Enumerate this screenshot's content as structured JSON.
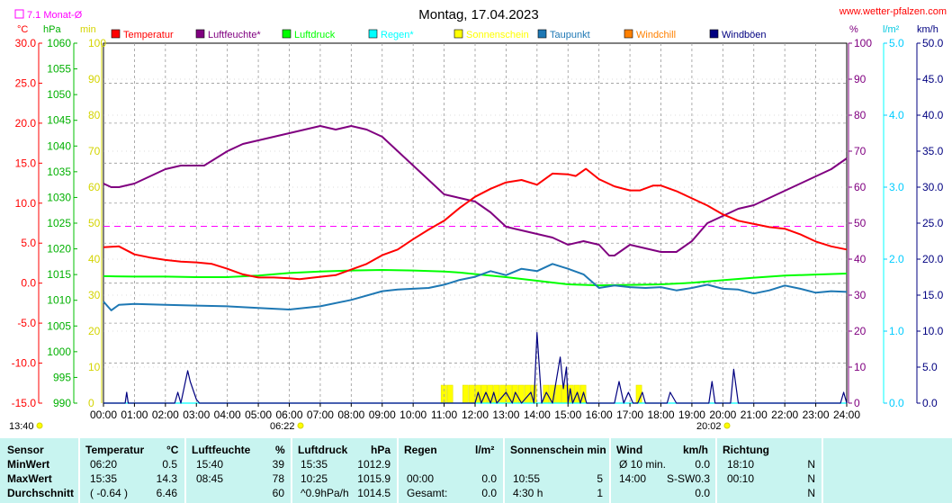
{
  "header": {
    "title": "Montag, 17.04.2023",
    "website": "www.wetter-pfalzen.com",
    "month_avg_label": "7.1 Monat-Ø"
  },
  "units": {
    "celsius": "°C",
    "hpa": "hPa",
    "min": "min",
    "percent": "%",
    "lm2": "l/m²",
    "kmh": "km/h"
  },
  "legend": [
    {
      "label": "Temperatur",
      "color": "#ff0000"
    },
    {
      "label": "Luftfeuchte*",
      "color": "#800080"
    },
    {
      "label": "Luftdruck",
      "color": "#00ff00"
    },
    {
      "label": "Regen*",
      "color": "#00ffff"
    },
    {
      "label": "Sonnenschein",
      "color": "#ffff00"
    },
    {
      "label": "Taupunkt",
      "color": "#1e78b4"
    },
    {
      "label": "Windchill",
      "color": "#ff8000"
    },
    {
      "label": "Windböen",
      "color": "#000080"
    }
  ],
  "axis_ticks": {
    "temperature": [
      "30.0",
      "25.0",
      "20.0",
      "15.0",
      "10.0",
      "5.0",
      "0.0",
      "-5.0",
      "-10.0",
      "-15.0"
    ],
    "pressure": [
      "1060",
      "1055",
      "1050",
      "1045",
      "1040",
      "1035",
      "1030",
      "1025",
      "1020",
      "1015",
      "1010",
      "1005",
      "1000",
      "995",
      "990"
    ],
    "sunshine": [
      "100",
      "90",
      "80",
      "70",
      "60",
      "50",
      "40",
      "30",
      "20",
      "10",
      "0"
    ],
    "humidity": [
      "100",
      "90",
      "80",
      "70",
      "60",
      "50",
      "40",
      "30",
      "20",
      "10",
      "0"
    ],
    "rain": [
      "5.0",
      "4.0",
      "3.0",
      "2.0",
      "1.0",
      "0.0"
    ],
    "wind": [
      "50.0",
      "45.0",
      "40.0",
      "35.0",
      "30.0",
      "25.0",
      "20.0",
      "15.0",
      "10.0",
      "5.0",
      "0.0"
    ],
    "time": [
      "00:00",
      "01:00",
      "02:00",
      "03:00",
      "04:00",
      "05:00",
      "06:00",
      "07:00",
      "08:00",
      "09:00",
      "10:00",
      "11:00",
      "12:00",
      "13:00",
      "14:00",
      "15:00",
      "16:00",
      "17:00",
      "18:00",
      "19:00",
      "20:00",
      "21:00",
      "22:00",
      "23:00",
      "24:00"
    ]
  },
  "sun_times": {
    "sunrise": "06:22",
    "sunset": "20:02",
    "previous_label": "13:40"
  },
  "chart_data": {
    "type": "line",
    "title": "Montag, 17.04.2023",
    "x_unit": "hours",
    "xlim": [
      0,
      24
    ],
    "axes": {
      "temperature": {
        "unit": "°C",
        "ylim": [
          -15,
          30
        ]
      },
      "pressure": {
        "unit": "hPa",
        "ylim": [
          990,
          1060
        ]
      },
      "sunshine": {
        "unit": "min",
        "ylim": [
          0,
          100
        ]
      },
      "humidity": {
        "unit": "%",
        "ylim": [
          0,
          100
        ]
      },
      "rain": {
        "unit": "l/m²",
        "ylim": [
          0,
          5
        ]
      },
      "wind": {
        "unit": "km/h",
        "ylim": [
          0,
          50
        ]
      }
    },
    "grid": true,
    "reference_line": {
      "label": "7.1 Monat-Ø",
      "value": 7.1,
      "axis": "temperature",
      "style": "dashed",
      "color": "#ff00ff"
    },
    "series": [
      {
        "name": "Temperatur",
        "axis": "temperature",
        "color": "#ff0000",
        "x": [
          0,
          0.5,
          1,
          1.5,
          2,
          2.5,
          3,
          3.5,
          4,
          4.5,
          5,
          5.5,
          6,
          6.33,
          7,
          7.5,
          8,
          8.5,
          9,
          9.5,
          10,
          10.5,
          11,
          11.5,
          12,
          12.5,
          13,
          13.5,
          14,
          14.5,
          15,
          15.25,
          15.58,
          16,
          16.5,
          17,
          17.33,
          17.75,
          18,
          18.5,
          19,
          19.5,
          20,
          20.5,
          21,
          21.5,
          22,
          22.5,
          23,
          23.5,
          24
        ],
        "y": [
          4.5,
          4.6,
          3.6,
          3.2,
          2.9,
          2.7,
          2.6,
          2.4,
          1.8,
          1.1,
          0.7,
          0.7,
          0.6,
          0.5,
          0.8,
          1.0,
          1.7,
          2.4,
          3.5,
          4.2,
          5.5,
          6.7,
          7.8,
          9.4,
          10.8,
          11.8,
          12.6,
          12.9,
          12.3,
          13.7,
          13.6,
          13.4,
          14.3,
          13.0,
          12.1,
          11.6,
          11.6,
          12.2,
          12.2,
          11.5,
          10.6,
          9.7,
          8.6,
          7.8,
          7.4,
          7.0,
          6.8,
          6.1,
          5.2,
          4.6,
          4.2
        ]
      },
      {
        "name": "Luftfeuchte*",
        "axis": "humidity",
        "color": "#800080",
        "x": [
          0,
          0.25,
          0.5,
          1,
          1.5,
          2,
          2.5,
          3,
          3.25,
          4,
          4.5,
          5,
          5.5,
          6,
          6.5,
          7,
          7.5,
          8,
          8.5,
          9,
          9.5,
          10,
          10.5,
          11,
          11.5,
          12,
          12.5,
          13,
          13.5,
          14,
          14.5,
          15,
          15.5,
          16,
          16.33,
          16.5,
          17,
          17.5,
          18,
          18.5,
          19,
          19.5,
          20,
          20.5,
          21,
          21.5,
          22,
          22.5,
          23,
          23.5,
          24
        ],
        "y": [
          61,
          60,
          60,
          61,
          63,
          65,
          66,
          66,
          66,
          70,
          72,
          73,
          74,
          75,
          76,
          77,
          76,
          77,
          76,
          74,
          70,
          66,
          62,
          58,
          57,
          56,
          53,
          49,
          48,
          47,
          46,
          44,
          45,
          44,
          41,
          41,
          44,
          43,
          42,
          42,
          45,
          50,
          52,
          54,
          55,
          57,
          59,
          61,
          63,
          65,
          68
        ]
      },
      {
        "name": "Luftdruck",
        "axis": "pressure",
        "color": "#00ff00",
        "x": [
          0,
          1,
          2,
          3,
          4,
          5,
          6,
          7,
          8,
          9,
          10,
          11,
          11.5,
          12,
          13,
          14,
          15,
          16,
          17,
          18,
          19,
          20,
          21,
          22,
          23,
          24
        ],
        "y": [
          1014.7,
          1014.6,
          1014.6,
          1014.5,
          1014.5,
          1014.8,
          1015.3,
          1015.6,
          1015.8,
          1015.9,
          1015.8,
          1015.6,
          1015.4,
          1015.1,
          1014.5,
          1013.8,
          1013.1,
          1012.9,
          1013.0,
          1013.1,
          1013.4,
          1013.9,
          1014.4,
          1014.8,
          1015.0,
          1015.2
        ]
      },
      {
        "name": "Taupunkt",
        "axis": "temperature",
        "color": "#1e78b4",
        "x": [
          0,
          0.25,
          0.5,
          1,
          2,
          3,
          4,
          5,
          6,
          7,
          8,
          9,
          9.5,
          10,
          10.5,
          11,
          11.5,
          12,
          12.5,
          13,
          13.5,
          14,
          14.5,
          15,
          15.5,
          16,
          16.5,
          17,
          17.5,
          18,
          18.5,
          19,
          19.5,
          20,
          20.5,
          21,
          21.5,
          22,
          22.5,
          23,
          23.5,
          24
        ],
        "y": [
          -2.3,
          -3.4,
          -2.7,
          -2.6,
          -2.7,
          -2.8,
          -2.9,
          -3.1,
          -3.3,
          -2.9,
          -2.1,
          -1.0,
          -0.8,
          -0.7,
          -0.6,
          -0.2,
          0.4,
          0.8,
          1.5,
          1.0,
          1.8,
          1.5,
          2.4,
          1.8,
          1.1,
          -0.6,
          -0.3,
          -0.5,
          -0.6,
          -0.5,
          -0.9,
          -0.6,
          -0.2,
          -0.7,
          -0.8,
          -1.3,
          -0.9,
          -0.3,
          -0.7,
          -1.2,
          -1.0,
          -1.1
        ]
      },
      {
        "name": "Windböen",
        "axis": "wind",
        "color": "#000080",
        "x": [
          0,
          0.7,
          0.75,
          0.8,
          1,
          2.3,
          2.4,
          2.5,
          2.72,
          2.8,
          3.0,
          3.1,
          12,
          12.1,
          12.2,
          12.35,
          12.5,
          12.6,
          12.7,
          13.0,
          13.2,
          13.3,
          13.5,
          13.8,
          13.9,
          14.0,
          14.15,
          14.3,
          14.5,
          14.75,
          14.85,
          14.95,
          15.0,
          15.07,
          15.15,
          15.3,
          15.4,
          15.5,
          15.6,
          16.0,
          16.5,
          16.65,
          16.8,
          16.95,
          17.1,
          17.15,
          17.25,
          17.4,
          17.5,
          18,
          18.2,
          18.3,
          18.5,
          19,
          19.55,
          19.65,
          19.75,
          20,
          20.25,
          20.35,
          20.5,
          20.6,
          21,
          23.8,
          23.9,
          24
        ],
        "y": [
          0,
          0,
          1.5,
          0,
          0,
          0,
          1.5,
          0,
          4.5,
          3,
          0.5,
          0,
          0,
          1.5,
          0,
          1.5,
          0,
          1.5,
          0,
          1.5,
          0,
          1.5,
          0,
          1.5,
          0,
          9.8,
          0,
          1.5,
          0,
          6.4,
          2,
          5,
          0,
          2,
          0,
          1.5,
          0,
          1.5,
          0,
          0,
          0,
          3,
          0,
          1.5,
          0,
          0,
          0,
          1.5,
          0,
          0,
          0,
          1.5,
          0,
          0,
          0,
          3,
          0,
          0,
          0,
          4.7,
          0,
          0,
          0,
          0,
          1.5,
          0
        ]
      },
      {
        "name": "Sonnenschein",
        "axis": "sunshine",
        "color": "#ffff00",
        "x": [
          10.9,
          11.1,
          11.3,
          11.5,
          11.6,
          11.8,
          12.0,
          12.2,
          12.4,
          12.6,
          12.8,
          13.0,
          13.2,
          13.4,
          13.6,
          13.8,
          14.0,
          14.2,
          14.4,
          14.6,
          14.8,
          15.0,
          15.2,
          15.4,
          15.6,
          15.8,
          16.0,
          16.2,
          16.4,
          16.6,
          16.8,
          17.0,
          17.2,
          17.4
        ],
        "y": [
          5,
          5,
          0,
          0,
          5,
          5,
          5,
          5,
          5,
          5,
          5,
          5,
          5,
          5,
          5,
          5,
          0,
          5,
          5,
          5,
          5,
          5,
          5,
          5,
          0,
          0,
          0,
          0,
          0,
          0,
          0,
          0,
          5,
          0
        ]
      },
      {
        "name": "Regen*",
        "axis": "rain",
        "color": "#00ffff",
        "x": [
          0,
          24
        ],
        "y": [
          0,
          0
        ]
      }
    ]
  },
  "stats": {
    "headers": {
      "sensor": "Sensor",
      "temp": "Temperatur",
      "temp_unit": "°C",
      "hum": "Luftfeuchte",
      "hum_unit": "%",
      "pres": "Luftdruck",
      "pres_unit": "hPa",
      "rain": "Regen",
      "rain_unit": "l/m²",
      "sun": "Sonnenschein min",
      "wind": "Wind",
      "wind_unit": "km/h",
      "dir": "Richtung"
    },
    "rows": [
      {
        "label": "MinWert",
        "temp_time": "06:20",
        "temp_val": "0.5",
        "hum_time": "15:40",
        "hum_val": "39",
        "pres_time": "15:35",
        "pres_val": "1012.9",
        "rain_time": "",
        "rain_val": "",
        "sun_time": "",
        "sun_val": "",
        "wind_time": "Ø 10 min.",
        "wind_dir": "",
        "wind_val": "0.0",
        "dir_time": "18:10",
        "dir_val": "N"
      },
      {
        "label": "MaxWert",
        "temp_time": "15:35",
        "temp_val": "14.3",
        "hum_time": "08:45",
        "hum_val": "78",
        "pres_time": "10:25",
        "pres_val": "1015.9",
        "rain_time": "00:00",
        "rain_val": "0.0",
        "sun_time": "10:55",
        "sun_val": "5",
        "wind_time": "14:00",
        "wind_dir": "S-SW",
        "wind_val": "0.3",
        "dir_time": "00:10",
        "dir_val": "N"
      },
      {
        "label": "Durchschnitt",
        "temp_time": "( -0.64 )",
        "temp_val": "6.46",
        "hum_time": "",
        "hum_val": "60",
        "pres_time": "^0.9hPa/h",
        "pres_val": "1014.5",
        "rain_time": "Gesamt:",
        "rain_val": "0.0",
        "sun_time": "4:30 h",
        "sun_val": "1",
        "wind_time": "",
        "wind_dir": "",
        "wind_val": "0.0",
        "dir_time": "",
        "dir_val": "N"
      }
    ]
  }
}
